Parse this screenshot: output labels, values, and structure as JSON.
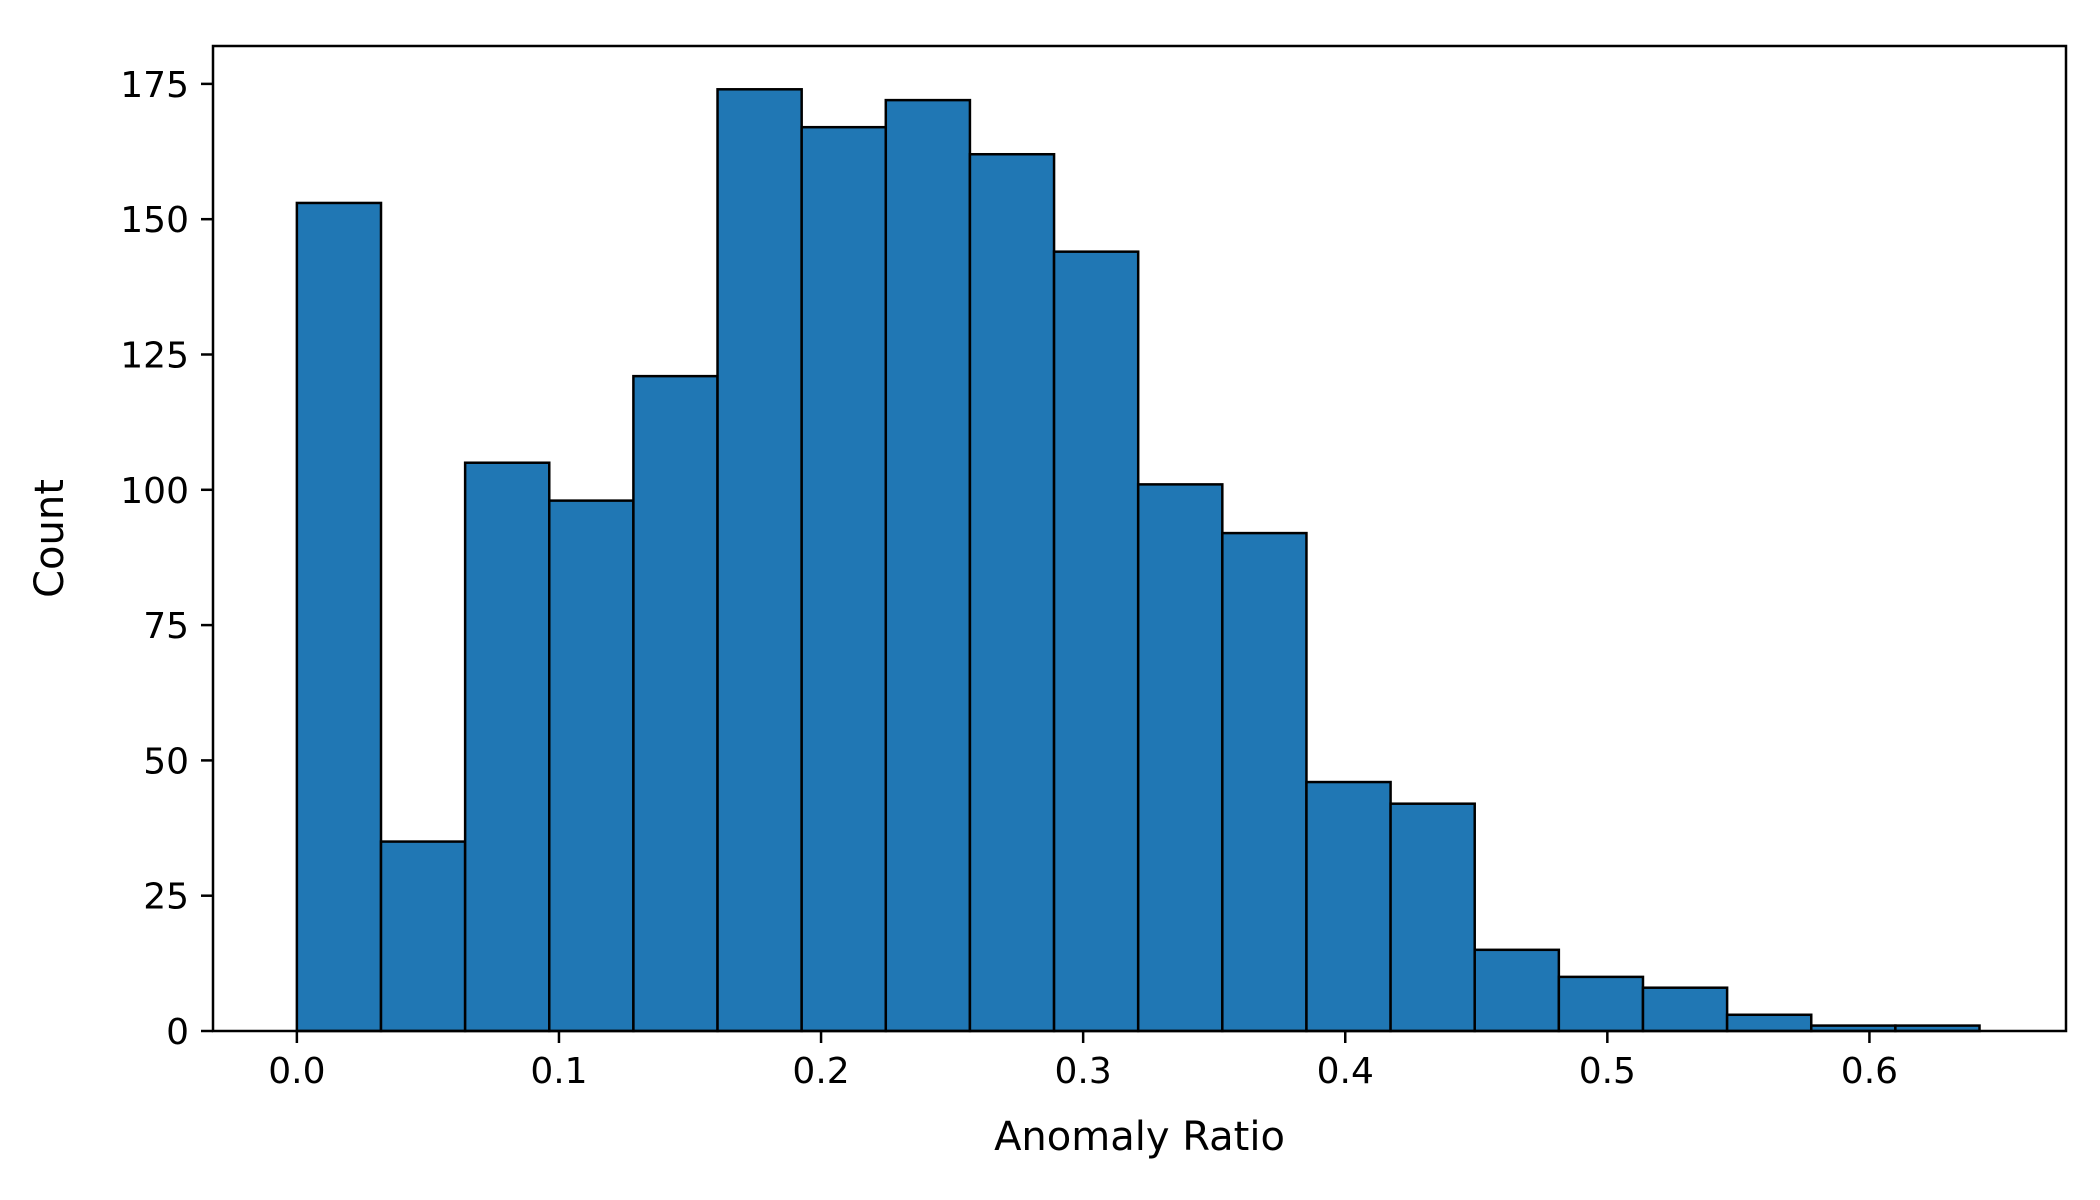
{
  "chart_data": {
    "type": "bar",
    "subtype": "histogram",
    "title": "",
    "xlabel": "Anomaly Ratio",
    "ylabel": "Count",
    "xlim": [
      -0.032,
      0.675
    ],
    "ylim": [
      0,
      182
    ],
    "xticks": [
      0.0,
      0.1,
      0.2,
      0.3,
      0.4,
      0.5,
      0.6
    ],
    "xtick_labels": [
      "0.0",
      "0.1",
      "0.2",
      "0.3",
      "0.4",
      "0.5",
      "0.6"
    ],
    "yticks": [
      0,
      25,
      50,
      75,
      100,
      125,
      150,
      175
    ],
    "ytick_labels": [
      "0",
      "25",
      "50",
      "75",
      "100",
      "125",
      "150",
      "175"
    ],
    "bin_edges": [
      0.0,
      0.0321,
      0.0642,
      0.0963,
      0.1284,
      0.1605,
      0.1926,
      0.2247,
      0.2568,
      0.2889,
      0.321,
      0.3531,
      0.3852,
      0.4173,
      0.4494,
      0.4815,
      0.5136,
      0.5457,
      0.5778,
      0.6099,
      0.642
    ],
    "counts": [
      153,
      35,
      105,
      98,
      121,
      174,
      167,
      172,
      162,
      144,
      101,
      92,
      46,
      42,
      15,
      10,
      8,
      3,
      1,
      1
    ],
    "grid": false,
    "legend": "none",
    "colors": {
      "bar_fill": "#2077b4",
      "bar_edge": "#000000",
      "axes": "#000000"
    }
  }
}
